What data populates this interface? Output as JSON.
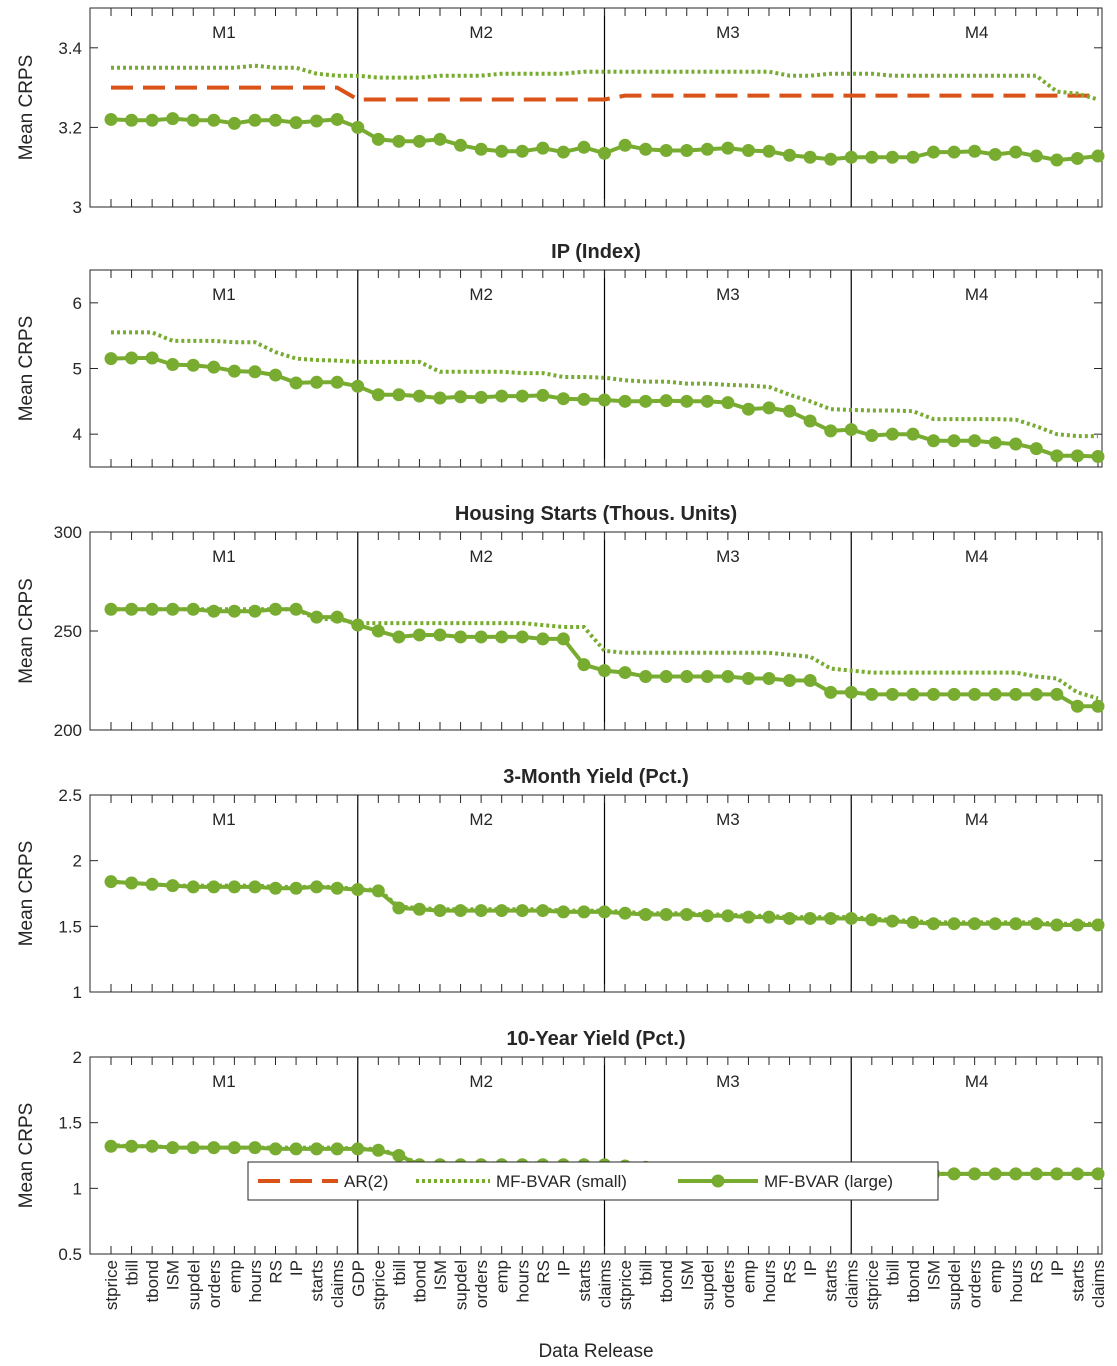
{
  "chart_data": {
    "type": "line",
    "categories": [
      "stprice",
      "tbill",
      "tbond",
      "ISM",
      "supdel",
      "orders",
      "emp",
      "hours",
      "RS",
      "IP",
      "starts",
      "claims",
      "GDP",
      "stprice",
      "tbill",
      "tbond",
      "ISM",
      "supdel",
      "orders",
      "emp",
      "hours",
      "RS",
      "IP",
      "starts",
      "claims",
      "stprice",
      "tbill",
      "tbond",
      "ISM",
      "supdel",
      "orders",
      "emp",
      "hours",
      "RS",
      "IP",
      "starts",
      "claims",
      "stprice",
      "tbill",
      "tbond",
      "ISM",
      "supdel",
      "orders",
      "emp",
      "hours",
      "RS",
      "IP",
      "starts",
      "claims"
    ],
    "xlabel": "Data Release",
    "period_labels": [
      "M1",
      "M2",
      "M3",
      "M4"
    ],
    "period_boundaries": [
      12,
      24,
      36
    ],
    "legend": {
      "placement": "bottom-center",
      "entries": [
        "AR(2)",
        "MF-BVAR (small)",
        "MF-BVAR (large)"
      ]
    },
    "colors": {
      "ar2": "#d95319",
      "mf_small": "#77ac30",
      "mf_large": "#77ac30",
      "axis": "#262626"
    },
    "panels": [
      {
        "title": "",
        "ylabel": "Mean CRPS",
        "ylim": [
          3,
          3.5
        ],
        "yticks": [
          "3",
          "3.2",
          "3.4"
        ],
        "ytick_values": [
          3,
          3.2,
          3.4
        ],
        "series": [
          {
            "name": "AR(2)",
            "style": "dashed",
            "values": [
              3.3,
              3.3,
              3.3,
              3.3,
              3.3,
              3.3,
              3.3,
              3.3,
              3.3,
              3.3,
              3.3,
              3.3,
              3.27,
              3.27,
              3.27,
              3.27,
              3.27,
              3.27,
              3.27,
              3.27,
              3.27,
              3.27,
              3.27,
              3.27,
              3.27,
              3.28,
              3.28,
              3.28,
              3.28,
              3.28,
              3.28,
              3.28,
              3.28,
              3.28,
              3.28,
              3.28,
              3.28,
              3.28,
              3.28,
              3.28,
              3.28,
              3.28,
              3.28,
              3.28,
              3.28,
              3.28,
              3.28,
              3.28,
              3.28
            ]
          },
          {
            "name": "MF-BVAR (small)",
            "style": "dotted",
            "values": [
              3.35,
              3.35,
              3.35,
              3.35,
              3.35,
              3.35,
              3.35,
              3.355,
              3.35,
              3.35,
              3.335,
              3.33,
              3.33,
              3.325,
              3.325,
              3.325,
              3.33,
              3.33,
              3.33,
              3.335,
              3.335,
              3.335,
              3.335,
              3.34,
              3.34,
              3.34,
              3.34,
              3.34,
              3.34,
              3.34,
              3.34,
              3.34,
              3.34,
              3.33,
              3.33,
              3.335,
              3.335,
              3.335,
              3.33,
              3.33,
              3.33,
              3.33,
              3.33,
              3.33,
              3.33,
              3.33,
              3.29,
              3.285,
              3.27
            ]
          },
          {
            "name": "MF-BVAR (large)",
            "style": "solid-marker",
            "values": [
              3.22,
              3.218,
              3.218,
              3.222,
              3.218,
              3.218,
              3.21,
              3.218,
              3.218,
              3.212,
              3.216,
              3.22,
              3.2,
              3.17,
              3.165,
              3.165,
              3.17,
              3.155,
              3.145,
              3.14,
              3.14,
              3.148,
              3.138,
              3.15,
              3.135,
              3.155,
              3.145,
              3.142,
              3.142,
              3.145,
              3.148,
              3.142,
              3.14,
              3.13,
              3.125,
              3.12,
              3.125,
              3.125,
              3.125,
              3.125,
              3.138,
              3.138,
              3.14,
              3.132,
              3.138,
              3.128,
              3.118,
              3.122,
              3.128
            ]
          }
        ]
      },
      {
        "title": "IP (Index)",
        "ylabel": "Mean CRPS",
        "ylim": [
          3.5,
          6.5
        ],
        "yticks": [
          "4",
          "5",
          "6"
        ],
        "ytick_values": [
          4,
          5,
          6
        ],
        "series": [
          {
            "name": "MF-BVAR (small)",
            "style": "dotted",
            "values": [
              5.55,
              5.55,
              5.55,
              5.42,
              5.42,
              5.42,
              5.4,
              5.4,
              5.25,
              5.15,
              5.13,
              5.12,
              5.1,
              5.1,
              5.1,
              5.1,
              4.95,
              4.95,
              4.95,
              4.95,
              4.93,
              4.93,
              4.87,
              4.87,
              4.86,
              4.82,
              4.8,
              4.8,
              4.77,
              4.77,
              4.75,
              4.74,
              4.72,
              4.6,
              4.5,
              4.38,
              4.37,
              4.36,
              4.36,
              4.35,
              4.23,
              4.23,
              4.23,
              4.23,
              4.22,
              4.12,
              4.0,
              3.97,
              3.97
            ]
          },
          {
            "name": "MF-BVAR (large)",
            "style": "solid-marker",
            "values": [
              5.15,
              5.16,
              5.16,
              5.06,
              5.05,
              5.02,
              4.96,
              4.95,
              4.9,
              4.78,
              4.79,
              4.79,
              4.73,
              4.6,
              4.6,
              4.58,
              4.55,
              4.57,
              4.56,
              4.58,
              4.58,
              4.59,
              4.54,
              4.53,
              4.52,
              4.5,
              4.5,
              4.51,
              4.5,
              4.5,
              4.48,
              4.38,
              4.4,
              4.35,
              4.2,
              4.05,
              4.07,
              3.98,
              4.0,
              4.0,
              3.9,
              3.9,
              3.9,
              3.87,
              3.85,
              3.78,
              3.67,
              3.67,
              3.66
            ]
          }
        ]
      },
      {
        "title": "Housing Starts (Thous. Units)",
        "ylabel": "Mean CRPS",
        "ylim": [
          200,
          300
        ],
        "yticks": [
          "200",
          "250",
          "300"
        ],
        "ytick_values": [
          200,
          250,
          300
        ],
        "series": [
          {
            "name": "MF-BVAR (small)",
            "style": "dotted",
            "values": [
              261,
              261,
              261,
              261,
              261,
              261,
              261,
              261,
              261,
              261,
              256,
              256,
              254,
              254,
              254,
              254,
              254,
              254,
              254,
              254,
              254,
              253,
              252,
              252,
              240,
              239,
              239,
              239,
              239,
              239,
              239,
              239,
              239,
              238,
              237,
              231,
              230,
              229,
              229,
              229,
              229,
              229,
              229,
              229,
              229,
              227,
              226,
              219,
              216
            ]
          },
          {
            "name": "MF-BVAR (large)",
            "style": "solid-marker",
            "values": [
              261,
              261,
              261,
              261,
              261,
              260,
              260,
              260,
              261,
              261,
              257,
              257,
              253,
              250,
              247,
              248,
              248,
              247,
              247,
              247,
              247,
              246,
              246,
              233,
              230,
              229,
              227,
              227,
              227,
              227,
              227,
              226,
              226,
              225,
              225,
              219,
              219,
              218,
              218,
              218,
              218,
              218,
              218,
              218,
              218,
              218,
              218,
              212,
              212
            ]
          }
        ]
      },
      {
        "title": "3-Month Yield (Pct.)",
        "ylabel": "Mean CRPS",
        "ylim": [
          1,
          2.5
        ],
        "yticks": [
          "1",
          "1.5",
          "2",
          "2.5"
        ],
        "ytick_values": [
          1,
          1.5,
          2,
          2.5
        ],
        "series": [
          {
            "name": "MF-BVAR (small)",
            "style": "dotted",
            "values": [
              1.84,
              1.83,
              1.82,
              1.81,
              1.81,
              1.81,
              1.81,
              1.81,
              1.8,
              1.8,
              1.8,
              1.8,
              1.78,
              1.78,
              1.65,
              1.64,
              1.63,
              1.63,
              1.63,
              1.63,
              1.63,
              1.63,
              1.62,
              1.62,
              1.62,
              1.61,
              1.6,
              1.6,
              1.6,
              1.59,
              1.59,
              1.58,
              1.58,
              1.57,
              1.57,
              1.57,
              1.57,
              1.56,
              1.55,
              1.54,
              1.53,
              1.53,
              1.53,
              1.53,
              1.53,
              1.53,
              1.52,
              1.52,
              1.52
            ]
          },
          {
            "name": "MF-BVAR (large)",
            "style": "solid-marker",
            "values": [
              1.84,
              1.83,
              1.82,
              1.81,
              1.8,
              1.8,
              1.8,
              1.8,
              1.79,
              1.79,
              1.8,
              1.79,
              1.78,
              1.77,
              1.64,
              1.63,
              1.62,
              1.62,
              1.62,
              1.62,
              1.62,
              1.62,
              1.61,
              1.61,
              1.61,
              1.6,
              1.59,
              1.59,
              1.59,
              1.58,
              1.58,
              1.57,
              1.57,
              1.56,
              1.56,
              1.56,
              1.56,
              1.55,
              1.54,
              1.53,
              1.52,
              1.52,
              1.52,
              1.52,
              1.52,
              1.52,
              1.51,
              1.51,
              1.51
            ]
          }
        ]
      },
      {
        "title": "10-Year Yield (Pct.)",
        "ylabel": "Mean CRPS",
        "ylim": [
          0.5,
          2
        ],
        "yticks": [
          "0.5",
          "1",
          "1.5",
          "2"
        ],
        "ytick_values": [
          0.5,
          1,
          1.5,
          2
        ],
        "series": [
          {
            "name": "MF-BVAR (small)",
            "style": "dotted",
            "values": [
              1.33,
              1.32,
              1.32,
              1.31,
              1.31,
              1.31,
              1.31,
              1.31,
              1.31,
              1.31,
              1.31,
              1.31,
              1.3,
              1.3,
              1.25,
              1.19,
              1.19,
              1.19,
              1.19,
              1.19,
              1.19,
              1.19,
              1.18,
              1.18,
              1.18,
              1.18,
              1.17,
              1.14,
              1.14,
              1.13,
              1.13,
              1.13,
              1.13,
              1.12,
              1.12,
              1.12,
              1.13,
              1.13,
              1.12,
              1.12,
              1.11,
              1.11,
              1.11,
              1.11,
              1.11,
              1.11,
              1.11,
              1.11,
              1.11
            ]
          },
          {
            "name": "MF-BVAR (large)",
            "style": "solid-marker",
            "values": [
              1.32,
              1.32,
              1.32,
              1.31,
              1.31,
              1.31,
              1.31,
              1.31,
              1.3,
              1.3,
              1.3,
              1.3,
              1.3,
              1.29,
              1.25,
              1.18,
              1.18,
              1.18,
              1.18,
              1.18,
              1.18,
              1.18,
              1.18,
              1.18,
              1.18,
              1.17,
              1.16,
              1.13,
              1.13,
              1.13,
              1.13,
              1.13,
              1.12,
              1.12,
              1.12,
              1.12,
              1.13,
              1.13,
              1.12,
              1.12,
              1.11,
              1.11,
              1.11,
              1.11,
              1.11,
              1.11,
              1.11,
              1.11,
              1.11
            ]
          }
        ]
      }
    ]
  }
}
